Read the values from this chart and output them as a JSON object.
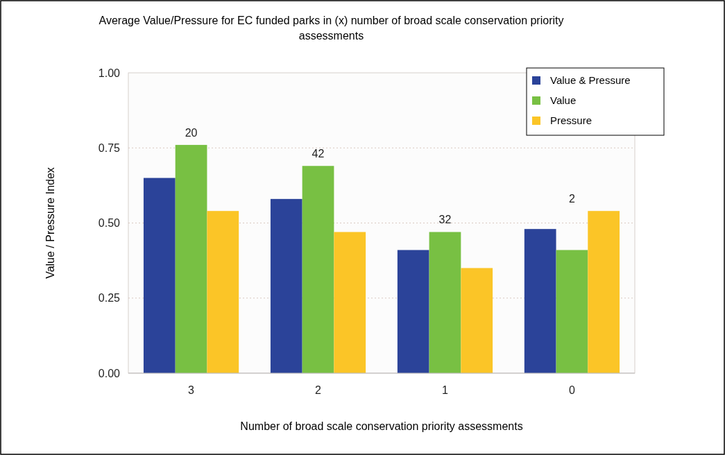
{
  "chart_data": {
    "type": "bar",
    "title": "Average Value/Pressure for EC funded parks in (x) number of broad scale conservation priority assessments",
    "xlabel": "Number of broad scale conservation priority assessments",
    "ylabel": "Value / Pressure Index",
    "categories": [
      "3",
      "2",
      "1",
      "0"
    ],
    "series": [
      {
        "name": "Value & Pressure",
        "color": "#2b4399",
        "values": [
          0.65,
          0.58,
          0.41,
          0.48
        ]
      },
      {
        "name": "Value",
        "color": "#78c043",
        "values": [
          0.76,
          0.69,
          0.47,
          0.41
        ]
      },
      {
        "name": "Pressure",
        "color": "#fbc527",
        "values": [
          0.54,
          0.47,
          0.35,
          0.54
        ]
      }
    ],
    "annotations": [
      "20",
      "42",
      "32",
      "2"
    ],
    "ylim": [
      0,
      1
    ],
    "yticks": [
      {
        "value": 0,
        "label": "0.00"
      },
      {
        "value": 0.25,
        "label": "0.25"
      },
      {
        "value": 0.5,
        "label": "0.50"
      },
      {
        "value": 0.75,
        "label": "0.75"
      },
      {
        "value": 1,
        "label": "1.00"
      }
    ],
    "grid": "y",
    "legend": "top right"
  }
}
